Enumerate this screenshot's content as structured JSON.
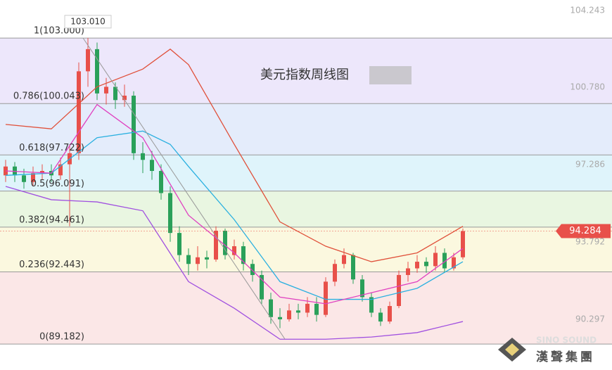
{
  "chart_data": {
    "type": "candlestick",
    "title": "美元指数周线图",
    "ylim": [
      88.01,
      104.72
    ],
    "yticks": [
      104.243,
      {
        "value": 100.78,
        "label": "100.780"
      },
      97.286,
      93.792,
      90.297
    ],
    "high_label": {
      "value": 103.01,
      "label": "103.010"
    },
    "last_price": 94.284,
    "last_price_color": "#e8504a",
    "fib_levels": [
      {
        "label": "1(103.000)",
        "value": 103.0,
        "color": "#ede7fb"
      },
      {
        "label": "0.786(100.043)",
        "value": 100.043,
        "color": "#e4ecfb"
      },
      {
        "label": "0.618(97.722)",
        "value": 97.722,
        "color": "#dff4fb"
      },
      {
        "label": "0.5(96.091)",
        "value": 96.091,
        "color": "#e9f6e1"
      },
      {
        "label": "0.382(94.461)",
        "value": 94.461,
        "color": "#fbf8df"
      },
      {
        "label": "0.236(92.443)",
        "value": 92.443,
        "color": "#fbe7e7"
      },
      {
        "label": "0(89.182)",
        "value": 89.182,
        "color": "#ffffff"
      }
    ],
    "up_color": "#e8504a",
    "down_color": "#2aa05a",
    "candles": {
      "open": [
        96.8,
        97.2,
        96.8,
        96.5,
        96.9,
        97.0,
        96.8,
        97.3,
        97.8,
        101.5,
        102.5,
        100.5,
        100.8,
        100.2,
        100.4,
        97.8,
        97.5,
        97.0,
        96.0,
        94.2,
        93.2,
        92.8,
        93.1,
        93.0,
        94.3,
        93.2,
        93.6,
        92.8,
        92.3,
        91.2,
        90.4,
        90.3,
        90.7,
        90.6,
        91.0,
        90.5,
        92.0,
        92.8,
        93.2,
        92.1,
        91.3,
        90.6,
        90.2,
        90.9,
        92.3,
        92.6,
        92.9,
        92.7,
        93.3,
        92.6,
        93.1
      ],
      "high": [
        97.5,
        97.4,
        97.1,
        97.2,
        97.3,
        97.3,
        97.6,
        98.2,
        101.9,
        103.01,
        102.8,
        101.2,
        101.0,
        100.9,
        100.6,
        98.3,
        97.9,
        97.3,
        96.3,
        94.5,
        93.5,
        93.6,
        93.4,
        94.5,
        94.4,
        93.9,
        93.8,
        93.0,
        92.5,
        91.5,
        90.8,
        91.0,
        91.0,
        91.3,
        91.3,
        92.2,
        93.0,
        93.5,
        93.3,
        92.3,
        91.5,
        90.8,
        91.1,
        92.5,
        92.9,
        93.2,
        93.1,
        93.6,
        93.5,
        93.3,
        94.4
      ],
      "low": [
        96.5,
        96.5,
        96.2,
        96.3,
        96.6,
        96.5,
        96.6,
        94.5,
        97.5,
        100.8,
        100.2,
        100.0,
        99.8,
        99.9,
        97.5,
        96.9,
        96.6,
        95.7,
        93.8,
        92.9,
        92.3,
        92.5,
        92.6,
        92.9,
        93.0,
        93.0,
        92.5,
        92.0,
        91.0,
        90.1,
        89.9,
        90.2,
        90.3,
        90.4,
        90.2,
        90.4,
        91.8,
        92.6,
        91.9,
        91.1,
        90.4,
        90.0,
        90.1,
        90.8,
        92.0,
        92.4,
        92.4,
        92.5,
        92.4,
        92.5,
        93.0
      ],
      "close": [
        97.2,
        96.8,
        96.5,
        96.9,
        97.0,
        96.8,
        97.3,
        97.8,
        101.5,
        102.5,
        100.5,
        100.8,
        100.2,
        100.4,
        97.8,
        97.5,
        97.0,
        96.0,
        94.2,
        93.2,
        92.8,
        93.1,
        93.0,
        94.3,
        93.2,
        93.6,
        92.8,
        92.3,
        91.2,
        90.4,
        90.3,
        90.7,
        90.6,
        91.0,
        90.5,
        92.0,
        92.8,
        93.2,
        92.1,
        91.3,
        90.6,
        90.2,
        90.9,
        92.3,
        92.6,
        92.9,
        92.7,
        93.3,
        92.6,
        93.1,
        94.284
      ]
    },
    "lines": [
      {
        "color": "#e0503a",
        "x": [
          0,
          5,
          10,
          15,
          18,
          20,
          25,
          30,
          35,
          40,
          45,
          50
        ],
        "values": [
          99.1,
          98.9,
          100.8,
          101.6,
          102.5,
          101.8,
          98.2,
          94.7,
          93.6,
          92.9,
          93.3,
          94.5
        ]
      },
      {
        "color": "#a050e0",
        "x": [
          0,
          5,
          10,
          15,
          20,
          25,
          30,
          35,
          40,
          45,
          50
        ],
        "values": [
          96.3,
          95.7,
          95.6,
          95.2,
          92.0,
          90.8,
          89.4,
          89.4,
          89.5,
          89.7,
          90.2
        ]
      },
      {
        "color": "#2ab0e0",
        "x": [
          0,
          5,
          10,
          15,
          18,
          20,
          25,
          30,
          35,
          40,
          45,
          50
        ],
        "values": [
          96.8,
          96.9,
          98.5,
          98.8,
          98.2,
          97.2,
          94.8,
          92.0,
          91.2,
          91.2,
          91.7,
          92.9
        ]
      },
      {
        "color": "#e040c0",
        "x": [
          0,
          5,
          10,
          15,
          20,
          25,
          30,
          35,
          40,
          45,
          50
        ],
        "values": [
          97.0,
          96.9,
          100.0,
          98.5,
          95.0,
          93.3,
          91.3,
          91.0,
          91.5,
          92.0,
          93.5
        ]
      }
    ],
    "watermark": "SINO SOUND",
    "brand": "漢聲集團"
  }
}
